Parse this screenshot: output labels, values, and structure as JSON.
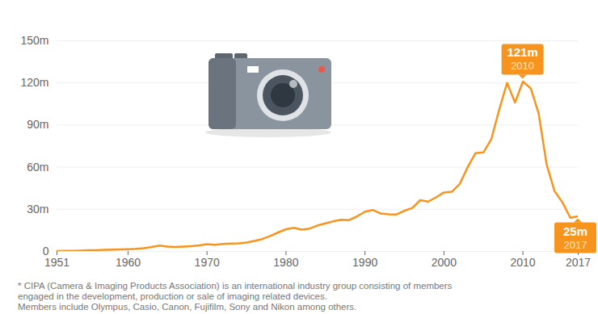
{
  "chart_data": {
    "type": "line",
    "x": [
      1951,
      1952,
      1953,
      1954,
      1955,
      1956,
      1957,
      1958,
      1959,
      1960,
      1961,
      1962,
      1963,
      1964,
      1965,
      1966,
      1967,
      1968,
      1969,
      1970,
      1971,
      1972,
      1973,
      1974,
      1975,
      1976,
      1977,
      1978,
      1979,
      1980,
      1981,
      1982,
      1983,
      1984,
      1985,
      1986,
      1987,
      1988,
      1989,
      1990,
      1991,
      1992,
      1993,
      1994,
      1995,
      1996,
      1997,
      1998,
      1999,
      2000,
      2001,
      2002,
      2003,
      2004,
      2005,
      2006,
      2007,
      2008,
      2009,
      2010,
      2011,
      2012,
      2013,
      2014,
      2015,
      2016,
      2017
    ],
    "values": [
      0.3,
      0.4,
      0.5,
      0.6,
      0.8,
      0.9,
      1.2,
      1.3,
      1.4,
      1.6,
      1.8,
      2.3,
      3.2,
      4.2,
      3.5,
      3.1,
      3.4,
      3.8,
      4.3,
      5.2,
      4.8,
      5.3,
      5.6,
      5.8,
      6.3,
      7.5,
      8.8,
      11,
      13.5,
      15.8,
      16.8,
      15.5,
      16.3,
      18.5,
      20,
      21.5,
      22.5,
      22.3,
      25,
      28.3,
      29.5,
      27,
      26.5,
      26.3,
      29,
      31,
      36.5,
      35.5,
      38.5,
      42,
      42.5,
      48,
      60,
      70,
      70.5,
      80,
      101,
      120,
      106,
      121,
      116,
      98,
      62,
      43,
      35,
      24,
      25
    ],
    "color": "#f7941d",
    "xlim": [
      1951,
      2017
    ],
    "xticks": [
      1951,
      1960,
      1970,
      1980,
      1990,
      2000,
      2010,
      2017
    ],
    "ylim": [
      0,
      150
    ],
    "yticks": [
      0,
      {
        "value": 30,
        "label": "30m"
      },
      {
        "value": 60,
        "label": "60m"
      },
      {
        "value": 90,
        "label": "90m"
      },
      {
        "value": 120,
        "label": "120m"
      },
      {
        "value": 150,
        "label": "150m"
      }
    ],
    "grid": true,
    "annotations": [
      {
        "x": 2010,
        "y": 121,
        "lines": [
          "121m",
          "2010"
        ]
      },
      {
        "x": 2017,
        "y": 25,
        "lines": [
          "25m",
          "2017"
        ]
      }
    ],
    "footnote": [
      "* CIPA (Camera & Imaging Products Association) is an international industry group consisting of members",
      "engaged in the development, production or sale of imaging related devices.",
      "Members include Olympus, Casio, Canon, Fujifilm, Sony and Nikon among others."
    ]
  }
}
